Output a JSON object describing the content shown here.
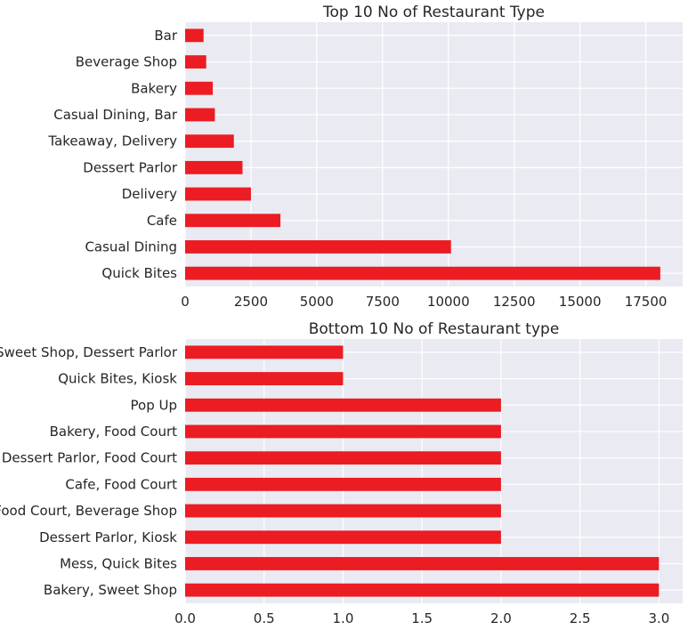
{
  "chart_data": [
    {
      "type": "bar",
      "orientation": "horizontal",
      "title": "Top 10 No of Restaurant Type",
      "categories": [
        "Bar",
        "Beverage Shop",
        "Bakery",
        "Casual Dining, Bar",
        "Takeaway, Delivery",
        "Dessert Parlor",
        "Delivery",
        "Cafe",
        "Casual Dining",
        "Quick Bites"
      ],
      "values": [
        700,
        800,
        1050,
        1130,
        1850,
        2180,
        2500,
        3620,
        10100,
        18050
      ],
      "xlim": [
        0,
        18900
      ],
      "xticks": [
        0,
        2500,
        5000,
        7500,
        10000,
        12500,
        15000,
        17500
      ],
      "xtick_labels": [
        "0",
        "2500",
        "5000",
        "7500",
        "10000",
        "12500",
        "15000",
        "17500"
      ],
      "grid": true,
      "color": "#eb1c22"
    },
    {
      "type": "bar",
      "orientation": "horizontal",
      "title": "Bottom 10 No of Restaurant type",
      "categories": [
        "Sweet Shop, Dessert Parlor",
        "Quick Bites, Kiosk",
        "Pop Up",
        "Bakery, Food Court",
        "Dessert Parlor, Food Court",
        "Cafe, Food Court",
        "Food Court, Beverage Shop",
        "Dessert Parlor, Kiosk",
        "Mess, Quick Bites",
        "Bakery, Sweet Shop"
      ],
      "values": [
        1,
        1,
        2,
        2,
        2,
        2,
        2,
        2,
        3,
        3
      ],
      "xlim": [
        0,
        3.15
      ],
      "xticks": [
        0,
        0.5,
        1,
        1.5,
        2,
        2.5,
        3
      ],
      "xtick_labels": [
        "0.0",
        "0.5",
        "1.0",
        "1.5",
        "2.0",
        "2.5",
        "3.0"
      ],
      "grid": true,
      "color": "#eb1c22"
    }
  ]
}
